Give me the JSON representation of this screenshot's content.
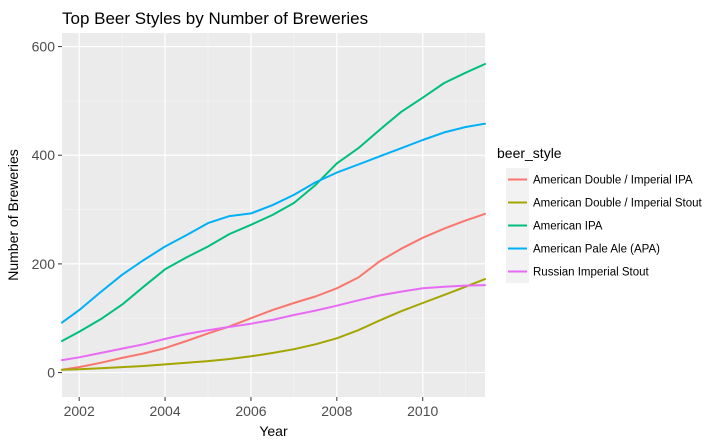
{
  "chart_data": {
    "type": "line",
    "title": "Top Beer Styles by Number of Breweries",
    "xlabel": "Year",
    "ylabel": "Number of Breweries",
    "xlim": [
      2001.6,
      2011.45
    ],
    "ylim": [
      -45,
      625
    ],
    "x_ticks": [
      2002,
      2004,
      2006,
      2008,
      2010
    ],
    "x_tick_labels": [
      "2002",
      "2004",
      "2006",
      "2008",
      "2010"
    ],
    "y_ticks": [
      0,
      200,
      400,
      600
    ],
    "y_tick_labels": [
      "0",
      "200",
      "400",
      "600"
    ],
    "grid": true,
    "legend_title": "beer_style",
    "legend_position": "right",
    "series": [
      {
        "name": "American Double / Imperial IPA",
        "color": "#F8766D",
        "x": [
          2001.6,
          2002,
          2002.5,
          2003,
          2003.5,
          2004,
          2004.5,
          2005,
          2005.5,
          2006,
          2006.5,
          2007,
          2007.5,
          2008,
          2008.5,
          2009,
          2009.5,
          2010,
          2010.5,
          2011,
          2011.45
        ],
        "y": [
          5,
          10,
          18,
          27,
          35,
          45,
          58,
          72,
          85,
          100,
          115,
          128,
          140,
          155,
          175,
          205,
          228,
          248,
          265,
          280,
          292
        ]
      },
      {
        "name": "American Double / Imperial Stout",
        "color": "#A3A500",
        "x": [
          2001.6,
          2002,
          2002.5,
          2003,
          2003.5,
          2004,
          2004.5,
          2005,
          2005.5,
          2006,
          2006.5,
          2007,
          2007.5,
          2008,
          2008.5,
          2009,
          2009.5,
          2010,
          2010.5,
          2011,
          2011.45
        ],
        "y": [
          5,
          6,
          8,
          10,
          12,
          15,
          18,
          21,
          25,
          30,
          36,
          43,
          52,
          63,
          78,
          96,
          113,
          128,
          143,
          158,
          172
        ]
      },
      {
        "name": "American IPA",
        "color": "#00BF7D",
        "x": [
          2001.6,
          2002,
          2002.5,
          2003,
          2003.5,
          2004,
          2004.5,
          2005,
          2005.5,
          2006,
          2006.5,
          2007,
          2007.5,
          2008,
          2008.5,
          2009,
          2009.5,
          2010,
          2010.5,
          2011,
          2011.45
        ],
        "y": [
          58,
          75,
          98,
          125,
          158,
          190,
          212,
          232,
          255,
          272,
          290,
          312,
          345,
          385,
          413,
          447,
          480,
          506,
          533,
          552,
          568
        ]
      },
      {
        "name": "American Pale Ale (APA)",
        "color": "#00B0F6",
        "x": [
          2001.6,
          2002,
          2002.5,
          2003,
          2003.5,
          2004,
          2004.5,
          2005,
          2005.5,
          2006,
          2006.5,
          2007,
          2007.5,
          2008,
          2008.5,
          2009,
          2009.5,
          2010,
          2010.5,
          2011,
          2011.45
        ],
        "y": [
          92,
          115,
          148,
          180,
          207,
          232,
          253,
          275,
          288,
          293,
          308,
          327,
          350,
          368,
          383,
          398,
          413,
          428,
          442,
          452,
          458
        ]
      },
      {
        "name": "Russian Imperial Stout",
        "color": "#E76BF3",
        "x": [
          2001.6,
          2002,
          2002.5,
          2003,
          2003.5,
          2004,
          2004.5,
          2005,
          2005.5,
          2006,
          2006.5,
          2007,
          2007.5,
          2008,
          2008.5,
          2009,
          2009.5,
          2010,
          2010.5,
          2011,
          2011.45
        ],
        "y": [
          23,
          28,
          36,
          44,
          52,
          62,
          71,
          78,
          84,
          90,
          97,
          106,
          114,
          123,
          133,
          142,
          149,
          155,
          158,
          160,
          161
        ]
      }
    ]
  }
}
